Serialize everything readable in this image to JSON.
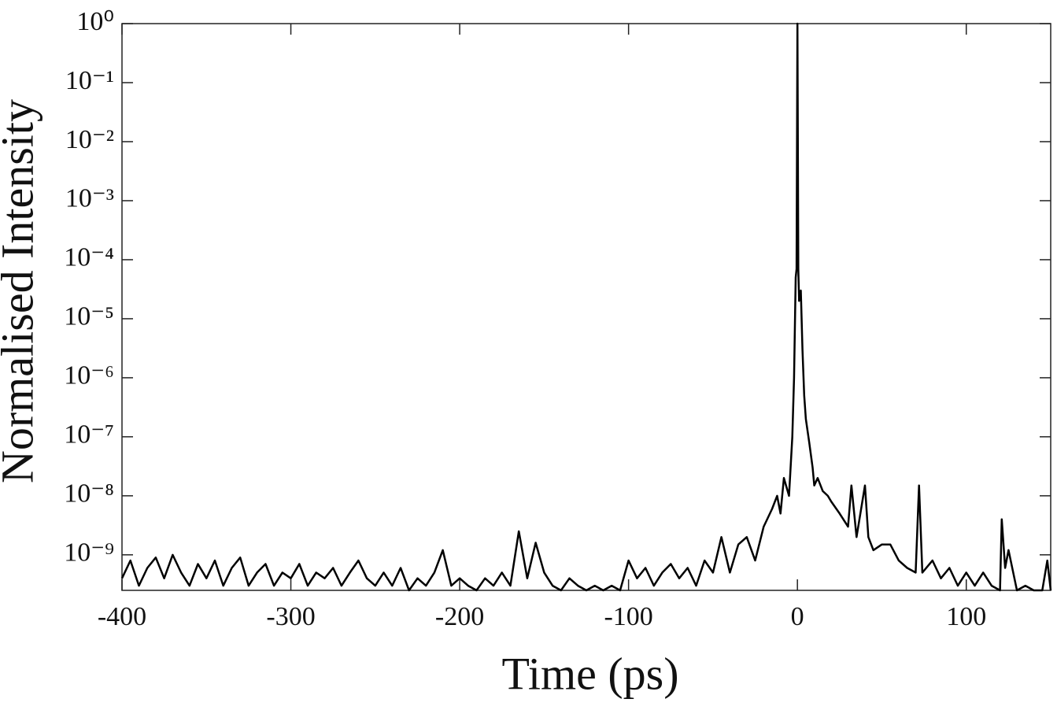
{
  "chart_data": {
    "type": "line",
    "log_y": true,
    "color": "#000000",
    "xlabel": "Time (ps)",
    "ylabel": "Normalised Intensity",
    "xlim": [
      -400,
      150
    ],
    "ylim": [
      2.5e-10,
      1
    ],
    "xticks": [
      -400,
      -300,
      -200,
      -100,
      0,
      100
    ],
    "yticks": [
      {
        "value": 1,
        "label": "10⁰"
      },
      {
        "value": 0.1,
        "label": "10⁻¹"
      },
      {
        "value": 0.01,
        "label": "10⁻²"
      },
      {
        "value": 0.001,
        "label": "10⁻³"
      },
      {
        "value": 0.0001,
        "label": "10⁻⁴"
      },
      {
        "value": 1e-05,
        "label": "10⁻⁵"
      },
      {
        "value": 1e-06,
        "label": "10⁻⁶"
      },
      {
        "value": 1e-07,
        "label": "10⁻⁷"
      },
      {
        "value": 1e-08,
        "label": "10⁻⁸"
      },
      {
        "value": 1e-09,
        "label": "10⁻⁹"
      }
    ],
    "x": [
      -400,
      -395,
      -390,
      -385,
      -380,
      -375,
      -370,
      -365,
      -360,
      -355,
      -350,
      -345,
      -340,
      -335,
      -330,
      -325,
      -320,
      -315,
      -310,
      -305,
      -300,
      -295,
      -290,
      -285,
      -280,
      -275,
      -270,
      -265,
      -260,
      -255,
      -250,
      -245,
      -240,
      -235,
      -230,
      -225,
      -220,
      -215,
      -210,
      -205,
      -200,
      -195,
      -190,
      -185,
      -180,
      -175,
      -170,
      -165,
      -160,
      -155,
      -150,
      -145,
      -140,
      -135,
      -130,
      -125,
      -120,
      -115,
      -110,
      -105,
      -100,
      -95,
      -90,
      -85,
      -80,
      -75,
      -70,
      -65,
      -60,
      -55,
      -50,
      -45,
      -40,
      -35,
      -30,
      -25,
      -20,
      -15,
      -12,
      -10,
      -8,
      -5,
      -3,
      -2,
      -1,
      -0.5,
      0,
      0.5,
      1,
      2,
      3,
      4,
      5,
      7,
      9,
      10,
      12,
      15,
      18,
      20,
      25,
      30,
      32,
      35,
      40,
      42,
      45,
      50,
      55,
      60,
      65,
      70,
      72,
      74,
      80,
      85,
      90,
      95,
      100,
      105,
      110,
      115,
      120,
      121,
      123,
      125,
      130,
      135,
      140,
      145,
      148,
      150
    ],
    "values": [
      4e-10,
      8e-10,
      3e-10,
      6e-10,
      9e-10,
      4e-10,
      1e-09,
      5e-10,
      3e-10,
      7e-10,
      4e-10,
      8e-10,
      3e-10,
      6e-10,
      9e-10,
      3e-10,
      5e-10,
      7e-10,
      3e-10,
      5e-10,
      4e-10,
      7e-10,
      3e-10,
      5e-10,
      4e-10,
      6e-10,
      3e-10,
      5e-10,
      8e-10,
      4e-10,
      3e-10,
      5e-10,
      3e-10,
      6e-10,
      2.5e-10,
      4e-10,
      3e-10,
      5e-10,
      1.2e-09,
      3e-10,
      4e-10,
      3e-10,
      2.5e-10,
      4e-10,
      3e-10,
      5e-10,
      3e-10,
      2.5e-09,
      4e-10,
      1.6e-09,
      5e-10,
      3e-10,
      2.5e-10,
      4e-10,
      3e-10,
      2.5e-10,
      3e-10,
      2.5e-10,
      3e-10,
      2.5e-10,
      8e-10,
      4e-10,
      6e-10,
      3e-10,
      5e-10,
      7e-10,
      4e-10,
      6e-10,
      3e-10,
      8e-10,
      5e-10,
      2e-09,
      5e-10,
      1.5e-09,
      2e-09,
      8e-10,
      3e-09,
      6e-09,
      1e-08,
      5e-09,
      2e-08,
      1e-08,
      1e-07,
      1e-06,
      5e-05,
      7e-05,
      1,
      7e-05,
      2e-05,
      3e-05,
      3e-06,
      5e-07,
      2e-07,
      8e-08,
      3e-08,
      1.5e-08,
      2e-08,
      1.2e-08,
      1e-08,
      8e-09,
      5e-09,
      3e-09,
      1.5e-08,
      2e-09,
      1.5e-08,
      2e-09,
      1.2e-09,
      1.5e-09,
      1.5e-09,
      8e-10,
      6e-10,
      5e-10,
      1.5e-08,
      5e-10,
      8e-10,
      4e-10,
      6e-10,
      3e-10,
      5e-10,
      3e-10,
      5e-10,
      3e-10,
      2.5e-10,
      4e-09,
      6e-10,
      1.2e-09,
      2.5e-10,
      3e-10,
      2.5e-10,
      2.5e-10,
      8e-10,
      2.5e-10
    ]
  }
}
